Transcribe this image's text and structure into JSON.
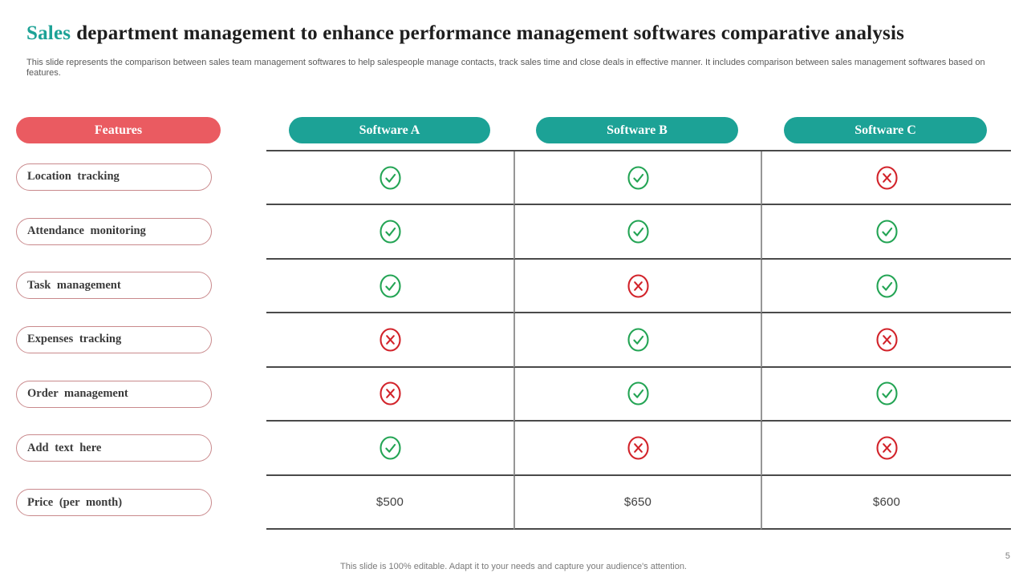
{
  "title": {
    "highlight": "Sales",
    "rest": "department management to enhance performance management softwares comparative analysis"
  },
  "subtitle": "This slide represents the comparison between sales team management softwares to help salespeople manage contacts, track sales time and close deals in effective manner. It includes comparison between sales management softwares based on features.",
  "table": {
    "feature_header": "Features",
    "columns": [
      "Software A",
      "Software B",
      "Software C"
    ],
    "rows": [
      {
        "feature": "Location tracking",
        "values": [
          "check",
          "check",
          "cross"
        ]
      },
      {
        "feature": "Attendance monitoring",
        "values": [
          "check",
          "check",
          "check"
        ]
      },
      {
        "feature": "Task management",
        "values": [
          "check",
          "cross",
          "check"
        ]
      },
      {
        "feature": "Expenses tracking",
        "values": [
          "cross",
          "check",
          "cross"
        ]
      },
      {
        "feature": "Order management",
        "values": [
          "cross",
          "check",
          "check"
        ]
      },
      {
        "feature": "Add text here",
        "values": [
          "check",
          "cross",
          "cross"
        ]
      },
      {
        "feature": "Price (per month)",
        "values": [
          "$500",
          "$650",
          "$600"
        ]
      }
    ]
  },
  "icons": {
    "check": "check-circle-icon",
    "cross": "cross-circle-icon"
  },
  "footer": {
    "text": "This slide is 100% editable. Adapt it to your needs and capture your audience's attention.",
    "page_number": "5"
  },
  "colors": {
    "accent_teal": "#1CA296",
    "accent_coral": "#EA5B61",
    "check_green": "#23A454",
    "cross_red": "#D2232A",
    "grid_line": "#4a4a4a",
    "grid_divider": "#969696"
  }
}
